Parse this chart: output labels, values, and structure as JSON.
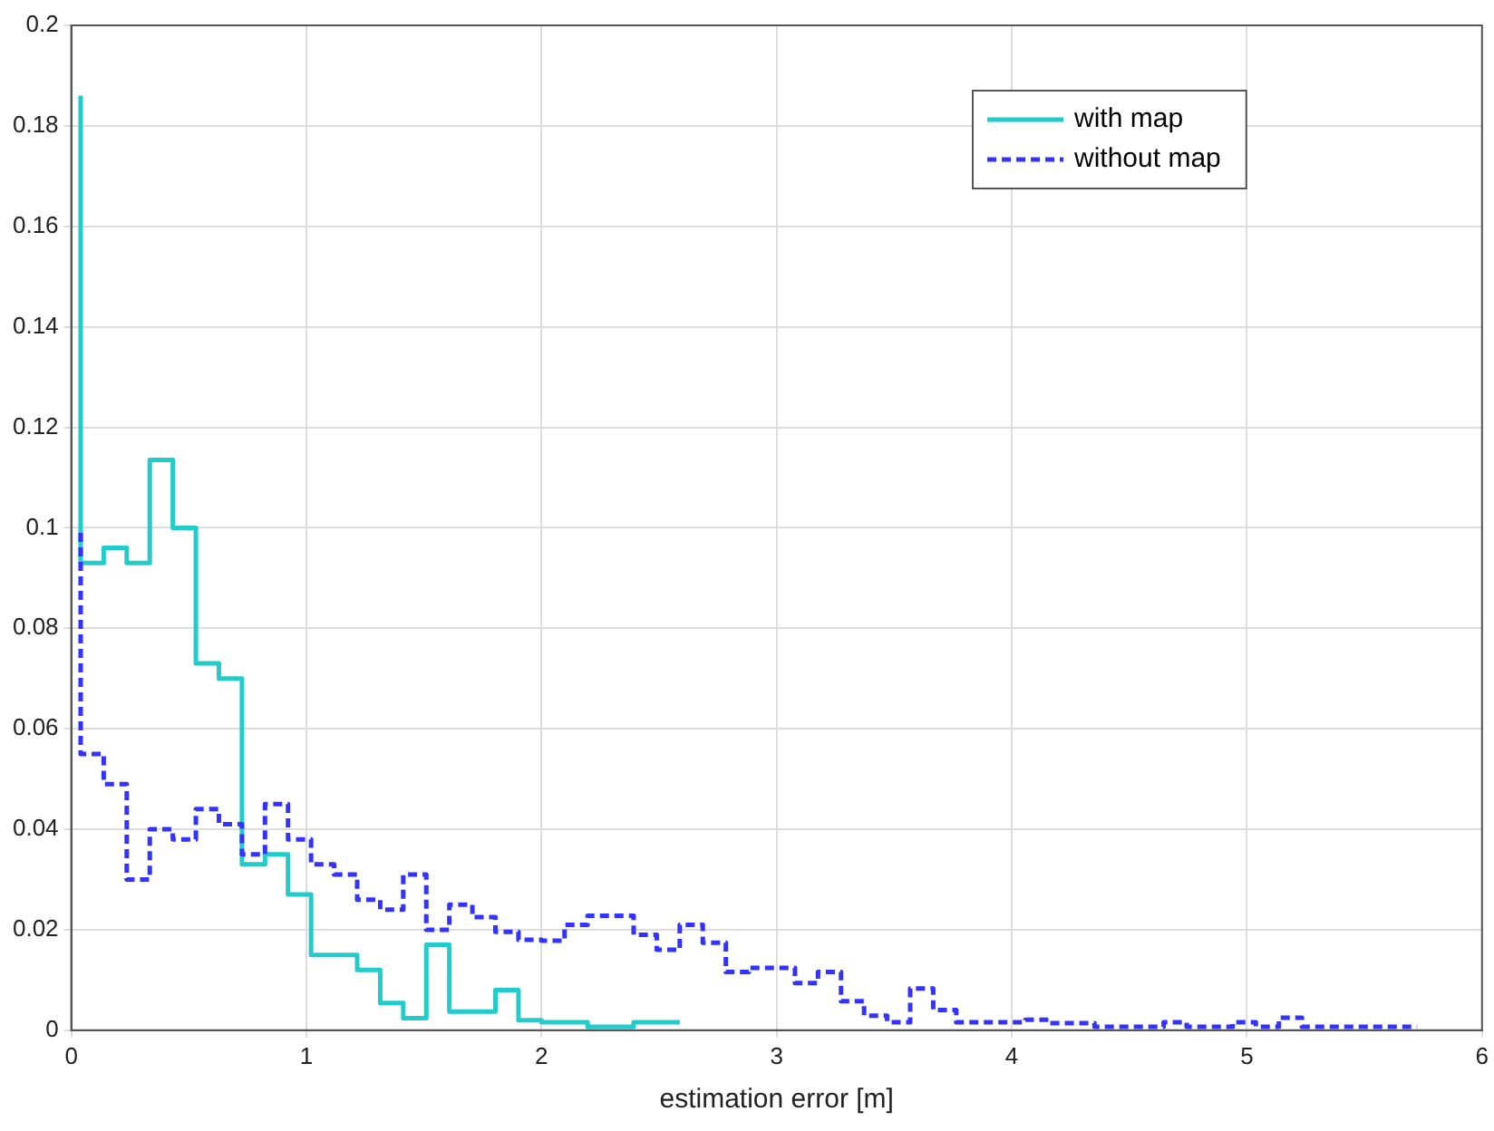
{
  "chart_data": {
    "type": "step",
    "xlabel": "estimation error [m]",
    "xlim": [
      0,
      6
    ],
    "xticks": [
      0,
      1,
      2,
      3,
      4,
      5,
      6
    ],
    "ylim": [
      0,
      0.2
    ],
    "yticks": [
      0,
      0.02,
      0.04,
      0.06,
      0.08,
      0.1,
      0.12,
      0.14,
      0.16,
      0.18,
      0.2
    ],
    "grid": true,
    "legend": "top right",
    "marker": "none",
    "series": [
      {
        "name": "with map",
        "color": "#22cccc",
        "line_style": "solid",
        "x": [
          0.04,
          0.138,
          0.236,
          0.334,
          0.432,
          0.53,
          0.628,
          0.726,
          0.824,
          0.922,
          1.02,
          1.118,
          1.216,
          1.314,
          1.412,
          1.51,
          1.608,
          1.706,
          1.804,
          1.902,
          2.0,
          2.098,
          2.196,
          2.294,
          2.392,
          2.49,
          2.588
        ],
        "values": [
          0.186,
          0.093,
          0.096,
          0.093,
          0.1135,
          0.1,
          0.073,
          0.07,
          0.033,
          0.035,
          0.027,
          0.015,
          0.015,
          0.012,
          0.0054,
          0.0024,
          0.017,
          0.0037,
          0.0037,
          0.008,
          0.002,
          0.0016,
          0.0016,
          0.0007,
          0.0007,
          0.0016,
          0.0016
        ]
      },
      {
        "name": "without map",
        "color": "#3333ff",
        "line_style": "dashed",
        "x": [
          0.04,
          0.138,
          0.236,
          0.334,
          0.432,
          0.53,
          0.628,
          0.726,
          0.824,
          0.922,
          1.02,
          1.118,
          1.216,
          1.314,
          1.412,
          1.51,
          1.608,
          1.706,
          1.804,
          1.902,
          2.0,
          2.098,
          2.196,
          2.294,
          2.392,
          2.49,
          2.588,
          2.686,
          2.784,
          2.882,
          2.98,
          3.078,
          3.176,
          3.274,
          3.372,
          3.47,
          3.568,
          3.666,
          3.764,
          3.862,
          3.96,
          4.058,
          4.156,
          4.254,
          4.352,
          4.45,
          4.548,
          4.646,
          4.744,
          4.842,
          4.94,
          5.038,
          5.136,
          5.234,
          5.332,
          5.43,
          5.528,
          5.626,
          5.724
        ],
        "values": [
          0.099,
          0.055,
          0.049,
          0.03,
          0.04,
          0.038,
          0.044,
          0.041,
          0.035,
          0.045,
          0.038,
          0.033,
          0.031,
          0.026,
          0.024,
          0.031,
          0.02,
          0.025,
          0.0225,
          0.0196,
          0.018,
          0.0178,
          0.021,
          0.0228,
          0.0228,
          0.019,
          0.016,
          0.021,
          0.0174,
          0.0116,
          0.0124,
          0.0124,
          0.0094,
          0.0116,
          0.0058,
          0.0029,
          0.0016,
          0.0083,
          0.004,
          0.0016,
          0.0016,
          0.0016,
          0.0021,
          0.0014,
          0.0014,
          0.0007,
          0.0007,
          0.0007,
          0.0016,
          0.0007,
          0.0007,
          0.0016,
          0.0007,
          0.0025,
          0.0007,
          0.0007,
          0.0007,
          0.0007,
          0.0007
        ]
      }
    ]
  }
}
